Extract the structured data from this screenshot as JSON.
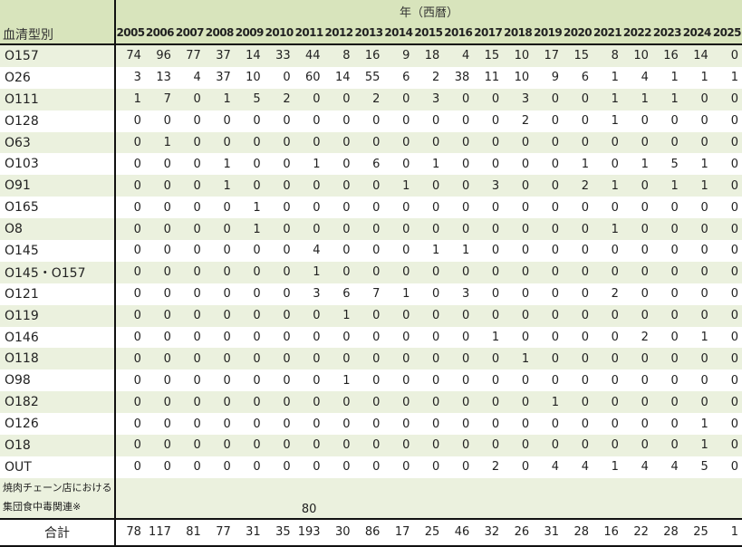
{
  "header": {
    "corner_label": "血清型別",
    "years_title": "年（西暦）",
    "years": [
      "2005",
      "2006",
      "2007",
      "2008",
      "2009",
      "2010",
      "2011",
      "2012",
      "2013",
      "2014",
      "2015",
      "2016",
      "2017",
      "2018",
      "2019",
      "2020",
      "2021",
      "2022",
      "2023",
      "2024",
      "2025"
    ]
  },
  "rows": [
    {
      "name": "O157",
      "values": [
        74,
        96,
        77,
        37,
        14,
        33,
        44,
        8,
        16,
        9,
        18,
        4,
        15,
        10,
        17,
        15,
        8,
        10,
        16,
        14,
        0
      ]
    },
    {
      "name": "O26",
      "values": [
        3,
        13,
        4,
        37,
        10,
        0,
        60,
        14,
        55,
        6,
        2,
        38,
        11,
        10,
        9,
        6,
        1,
        4,
        1,
        1,
        1
      ]
    },
    {
      "name": "O111",
      "values": [
        1,
        7,
        0,
        1,
        5,
        2,
        0,
        0,
        2,
        0,
        3,
        0,
        0,
        3,
        0,
        0,
        1,
        1,
        1,
        0,
        0
      ]
    },
    {
      "name": "O128",
      "values": [
        0,
        0,
        0,
        0,
        0,
        0,
        0,
        0,
        0,
        0,
        0,
        0,
        0,
        2,
        0,
        0,
        1,
        0,
        0,
        0,
        0
      ]
    },
    {
      "name": "O63",
      "values": [
        0,
        1,
        0,
        0,
        0,
        0,
        0,
        0,
        0,
        0,
        0,
        0,
        0,
        0,
        0,
        0,
        0,
        0,
        0,
        0,
        0
      ]
    },
    {
      "name": "O103",
      "values": [
        0,
        0,
        0,
        1,
        0,
        0,
        1,
        0,
        6,
        0,
        1,
        0,
        0,
        0,
        0,
        1,
        0,
        1,
        5,
        1,
        0
      ]
    },
    {
      "name": "O91",
      "values": [
        0,
        0,
        0,
        1,
        0,
        0,
        0,
        0,
        0,
        1,
        0,
        0,
        3,
        0,
        0,
        2,
        1,
        0,
        1,
        1,
        0
      ]
    },
    {
      "name": "O165",
      "values": [
        0,
        0,
        0,
        0,
        1,
        0,
        0,
        0,
        0,
        0,
        0,
        0,
        0,
        0,
        0,
        0,
        0,
        0,
        0,
        0,
        0
      ]
    },
    {
      "name": "O8",
      "values": [
        0,
        0,
        0,
        0,
        1,
        0,
        0,
        0,
        0,
        0,
        0,
        0,
        0,
        0,
        0,
        0,
        1,
        0,
        0,
        0,
        0
      ]
    },
    {
      "name": "O145",
      "values": [
        0,
        0,
        0,
        0,
        0,
        0,
        4,
        0,
        0,
        0,
        1,
        1,
        0,
        0,
        0,
        0,
        0,
        0,
        0,
        0,
        0
      ]
    },
    {
      "name": "O145・O157",
      "values": [
        0,
        0,
        0,
        0,
        0,
        0,
        1,
        0,
        0,
        0,
        0,
        0,
        0,
        0,
        0,
        0,
        0,
        0,
        0,
        0,
        0
      ]
    },
    {
      "name": "O121",
      "values": [
        0,
        0,
        0,
        0,
        0,
        0,
        3,
        6,
        7,
        1,
        0,
        3,
        0,
        0,
        0,
        0,
        2,
        0,
        0,
        0,
        0
      ]
    },
    {
      "name": "O119",
      "values": [
        0,
        0,
        0,
        0,
        0,
        0,
        0,
        1,
        0,
        0,
        0,
        0,
        0,
        0,
        0,
        0,
        0,
        0,
        0,
        0,
        0
      ]
    },
    {
      "name": "O146",
      "values": [
        0,
        0,
        0,
        0,
        0,
        0,
        0,
        0,
        0,
        0,
        0,
        0,
        1,
        0,
        0,
        0,
        0,
        2,
        0,
        1,
        0
      ]
    },
    {
      "name": "O118",
      "values": [
        0,
        0,
        0,
        0,
        0,
        0,
        0,
        0,
        0,
        0,
        0,
        0,
        0,
        1,
        0,
        0,
        0,
        0,
        0,
        0,
        0
      ]
    },
    {
      "name": "O98",
      "values": [
        0,
        0,
        0,
        0,
        0,
        0,
        0,
        1,
        0,
        0,
        0,
        0,
        0,
        0,
        0,
        0,
        0,
        0,
        0,
        0,
        0
      ]
    },
    {
      "name": "O182",
      "values": [
        0,
        0,
        0,
        0,
        0,
        0,
        0,
        0,
        0,
        0,
        0,
        0,
        0,
        0,
        1,
        0,
        0,
        0,
        0,
        0,
        0
      ]
    },
    {
      "name": "O126",
      "values": [
        0,
        0,
        0,
        0,
        0,
        0,
        0,
        0,
        0,
        0,
        0,
        0,
        0,
        0,
        0,
        0,
        0,
        0,
        0,
        1,
        0
      ]
    },
    {
      "name": "O18",
      "values": [
        0,
        0,
        0,
        0,
        0,
        0,
        0,
        0,
        0,
        0,
        0,
        0,
        0,
        0,
        0,
        0,
        0,
        0,
        0,
        1,
        0
      ]
    },
    {
      "name": "OUT",
      "values": [
        0,
        0,
        0,
        0,
        0,
        0,
        0,
        0,
        0,
        0,
        0,
        0,
        2,
        0,
        4,
        4,
        1,
        4,
        4,
        5,
        0
      ]
    }
  ],
  "note_row": {
    "name": "焼肉チェーン店における集団食中毒関連※",
    "value": "80",
    "year": "2011"
  },
  "total": {
    "label": "合計",
    "values": [
      78,
      117,
      81,
      77,
      31,
      35,
      193,
      30,
      86,
      17,
      25,
      46,
      32,
      26,
      31,
      28,
      16,
      22,
      28,
      25,
      1
    ]
  },
  "colors": {
    "header_bg": "#d8e4bc",
    "alt_row_bg": "#ebf1de",
    "border": "#111111"
  }
}
